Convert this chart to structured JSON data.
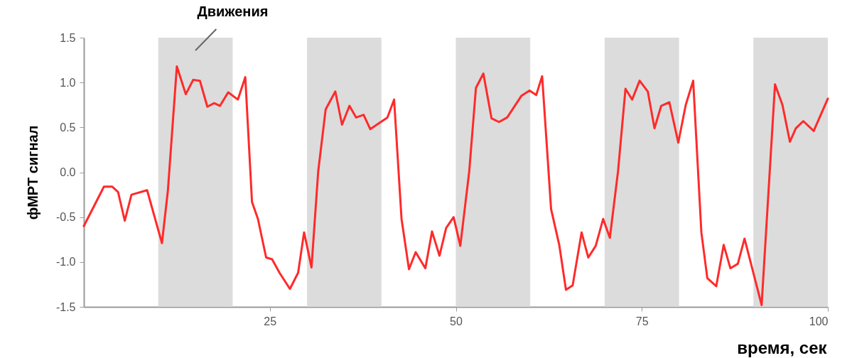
{
  "chart_data": {
    "type": "line",
    "xlabel": "время, сек",
    "ylabel": "фМРТ сигнал",
    "x": [
      0,
      2.7,
      3.8,
      4.6,
      5.5,
      6.4,
      8.5,
      10.5,
      11.3,
      12.5,
      13.7,
      14.7,
      15.6,
      16.6,
      17.5,
      18.3,
      19.4,
      20.7,
      21.7,
      22.6,
      23.4,
      24.5,
      25.3,
      26.3,
      27.7,
      28.8,
      29.6,
      30.6,
      31.5,
      32.5,
      33.8,
      34.7,
      35.7,
      36.6,
      37.6,
      38.5,
      40.8,
      41.7,
      42.7,
      43.7,
      44.6,
      45.9,
      46.8,
      47.8,
      48.7,
      49.7,
      50.6,
      51.8,
      52.7,
      53.7,
      54.8,
      55.8,
      56.9,
      58.8,
      59.9,
      60.8,
      61.6,
      62.8,
      63.9,
      64.8,
      65.7,
      66.9,
      67.8,
      68.8,
      69.8,
      70.7,
      71.8,
      72.8,
      73.7,
      74.7,
      75.8,
      76.7,
      77.6,
      78.7,
      79.9,
      80.9,
      81.9,
      83.0,
      83.8,
      85.0,
      86.0,
      86.9,
      87.9,
      88.8,
      91.1,
      92.9,
      93.9,
      94.9,
      95.7,
      96.7,
      98.1,
      100
    ],
    "series": [
      {
        "color": "#ff2a2a",
        "values": [
          -0.6,
          -0.16,
          -0.16,
          -0.22,
          -0.54,
          -0.25,
          -0.2,
          -0.79,
          -0.2,
          1.18,
          0.87,
          1.03,
          1.02,
          0.73,
          0.77,
          0.74,
          0.89,
          0.81,
          1.06,
          -0.33,
          -0.52,
          -0.95,
          -0.97,
          -1.12,
          -1.3,
          -1.12,
          -0.67,
          -1.06,
          0.01,
          0.7,
          0.9,
          0.53,
          0.74,
          0.61,
          0.64,
          0.48,
          0.61,
          0.81,
          -0.52,
          -1.08,
          -0.89,
          -1.07,
          -0.66,
          -0.93,
          -0.62,
          -0.5,
          -0.82,
          0.01,
          0.94,
          1.1,
          0.6,
          0.56,
          0.61,
          0.85,
          0.91,
          0.86,
          1.07,
          -0.41,
          -0.81,
          -1.31,
          -1.26,
          -0.67,
          -0.95,
          -0.82,
          -0.52,
          -0.73,
          0.01,
          0.93,
          0.81,
          1.02,
          0.9,
          0.49,
          0.74,
          0.78,
          0.33,
          0.75,
          1.02,
          -0.67,
          -1.18,
          -1.27,
          -0.81,
          -1.07,
          -1.02,
          -0.74,
          -1.48,
          0.98,
          0.75,
          0.34,
          0.49,
          0.57,
          0.46,
          0.82
        ]
      }
    ],
    "xlim": [
      0,
      100
    ],
    "xticks": [
      25,
      50,
      75,
      100
    ],
    "ylim": [
      -1.5,
      1.5
    ],
    "yticks": [
      {
        "value": -1.5,
        "label": "-1.5"
      },
      {
        "value": -1,
        "label": "-1.0"
      },
      {
        "value": -0.5,
        "label": "-0.5"
      },
      {
        "value": 0,
        "label": "0.0"
      },
      {
        "value": 0.5,
        "label": "0.5"
      },
      {
        "value": 1,
        "label": "1.0"
      },
      {
        "value": 1.5,
        "label": "1.5"
      }
    ],
    "bands": [
      {
        "axis": "x",
        "from": 10,
        "to": 20,
        "label": "Движения",
        "color": "#dcdcdc"
      },
      {
        "axis": "x",
        "from": 30,
        "to": 40,
        "color": "#dcdcdc"
      },
      {
        "axis": "x",
        "from": 50,
        "to": 60,
        "color": "#dcdcdc"
      },
      {
        "axis": "x",
        "from": 70,
        "to": 80,
        "color": "#dcdcdc"
      },
      {
        "axis": "x",
        "from": 90,
        "to": 100,
        "color": "#dcdcdc"
      }
    ],
    "grid": false,
    "marker": "none",
    "line_style": "solid"
  }
}
